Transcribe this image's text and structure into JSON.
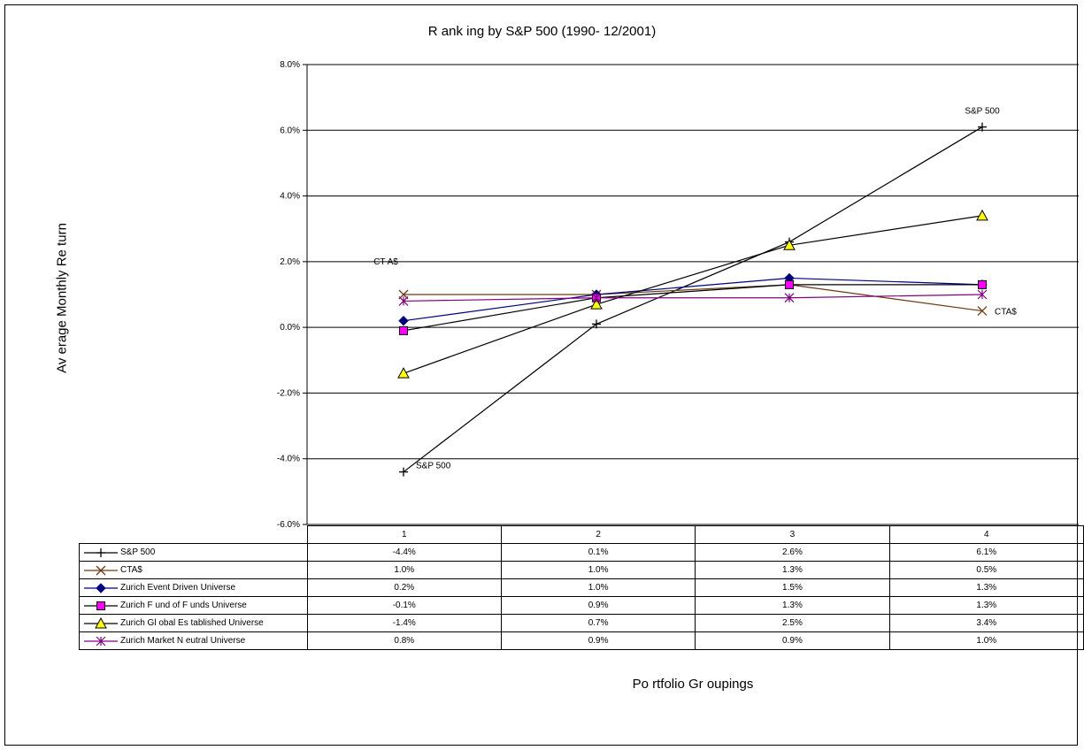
{
  "chart_data": {
    "type": "line",
    "title": "R ank ing by S&P 500 (1990- 12/2001)",
    "xlabel": "Po rtfolio Gr oupings",
    "ylabel": "Av erage Monthly Re turn",
    "categories": [
      "1",
      "2",
      "3",
      "4"
    ],
    "ylim": [
      -6.0,
      8.0
    ],
    "yticks": [
      "-6.0%",
      "-4.0%",
      "-2.0%",
      "0.0%",
      "2.0%",
      "4.0%",
      "6.0%",
      "8.0%"
    ],
    "grid": "horizontal",
    "legend": "data-table",
    "series": [
      {
        "name": "S&P 500",
        "values": [
          -4.4,
          0.1,
          2.6,
          6.1
        ],
        "labels": [
          "-4.4%",
          "0.1%",
          "2.6%",
          "6.1%"
        ],
        "color": "#000000",
        "marker": "plus",
        "marker_fill": "#000000"
      },
      {
        "name": "CTA$",
        "values": [
          1.0,
          1.0,
          1.3,
          0.5
        ],
        "labels": [
          "1.0%",
          "1.0%",
          "1.3%",
          "0.5%"
        ],
        "color": "#6b3a12",
        "marker": "x",
        "marker_fill": "#6b3a12"
      },
      {
        "name": "Zurich Event Driven Universe",
        "values": [
          0.2,
          1.0,
          1.5,
          1.3
        ],
        "labels": [
          "0.2%",
          "1.0%",
          "1.5%",
          "1.3%"
        ],
        "color": "#000080",
        "marker": "diamond",
        "marker_fill": "#000080"
      },
      {
        "name": "Zurich F und of F unds Universe",
        "values": [
          -0.1,
          0.9,
          1.3,
          1.3
        ],
        "labels": [
          "-0.1%",
          "0.9%",
          "1.3%",
          "1.3%"
        ],
        "color": "#000000",
        "marker": "square",
        "marker_fill": "#ff00ff"
      },
      {
        "name": "Zurich Gl obal Es tablished Universe",
        "values": [
          -1.4,
          0.7,
          2.5,
          3.4
        ],
        "labels": [
          "-1.4%",
          "0.7%",
          "2.5%",
          "3.4%"
        ],
        "color": "#000000",
        "marker": "triangle",
        "marker_fill": "#ffff00"
      },
      {
        "name": "Zurich Market N eutral Universe",
        "values": [
          0.8,
          0.9,
          0.9,
          1.0
        ],
        "labels": [
          "0.8%",
          "0.9%",
          "0.9%",
          "1.0%"
        ],
        "color": "#800080",
        "marker": "asterisk",
        "marker_fill": "#800080"
      }
    ],
    "annotations": [
      {
        "text": "S&P 500",
        "series": 0,
        "point": 3,
        "placement": "above"
      },
      {
        "text": "S&P 500",
        "series": 0,
        "point": 0,
        "placement": "right"
      },
      {
        "text": "CT A$",
        "series": 1,
        "point": 0,
        "placement": "above"
      },
      {
        "text": "CTA$",
        "series": 1,
        "point": 3,
        "placement": "right"
      }
    ]
  }
}
